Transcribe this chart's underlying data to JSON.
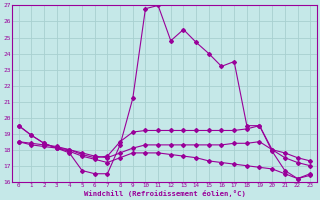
{
  "xlabel": "Windchill (Refroidissement éolien,°C)",
  "background_color": "#c5e8e8",
  "grid_color": "#a8d0d0",
  "line_color": "#990099",
  "x_hours": [
    0,
    1,
    2,
    3,
    4,
    5,
    6,
    7,
    8,
    9,
    10,
    11,
    12,
    13,
    14,
    15,
    16,
    17,
    18,
    19,
    20,
    21,
    22,
    23
  ],
  "series1": [
    19.5,
    18.9,
    18.4,
    18.1,
    17.8,
    16.7,
    16.5,
    16.5,
    18.3,
    21.2,
    26.8,
    27.0,
    24.8,
    25.5,
    24.7,
    24.0,
    23.2,
    23.5,
    19.5,
    19.5,
    17.9,
    16.7,
    16.2,
    16.5
  ],
  "series2": [
    19.5,
    18.9,
    18.4,
    18.1,
    18.0,
    17.7,
    17.5,
    17.6,
    18.5,
    19.1,
    19.2,
    19.2,
    19.2,
    19.2,
    19.2,
    19.2,
    19.2,
    19.2,
    19.3,
    19.5,
    18.0,
    17.5,
    17.2,
    17.0
  ],
  "series3": [
    18.5,
    18.4,
    18.3,
    18.2,
    18.0,
    17.8,
    17.6,
    17.5,
    17.8,
    18.1,
    18.3,
    18.3,
    18.3,
    18.3,
    18.3,
    18.3,
    18.3,
    18.4,
    18.4,
    18.5,
    18.0,
    17.8,
    17.5,
    17.3
  ],
  "series4": [
    18.5,
    18.3,
    18.2,
    18.1,
    17.9,
    17.6,
    17.4,
    17.2,
    17.5,
    17.8,
    17.8,
    17.8,
    17.7,
    17.6,
    17.5,
    17.3,
    17.2,
    17.1,
    17.0,
    16.9,
    16.8,
    16.5,
    16.2,
    16.4
  ],
  "ylim": [
    16,
    27
  ],
  "xlim": [
    -0.5,
    23.5
  ],
  "yticks": [
    16,
    17,
    18,
    19,
    20,
    21,
    22,
    23,
    24,
    25,
    26,
    27
  ],
  "xticks": [
    0,
    1,
    2,
    3,
    4,
    5,
    6,
    7,
    8,
    9,
    10,
    11,
    12,
    13,
    14,
    15,
    16,
    17,
    18,
    19,
    20,
    21,
    22,
    23
  ]
}
